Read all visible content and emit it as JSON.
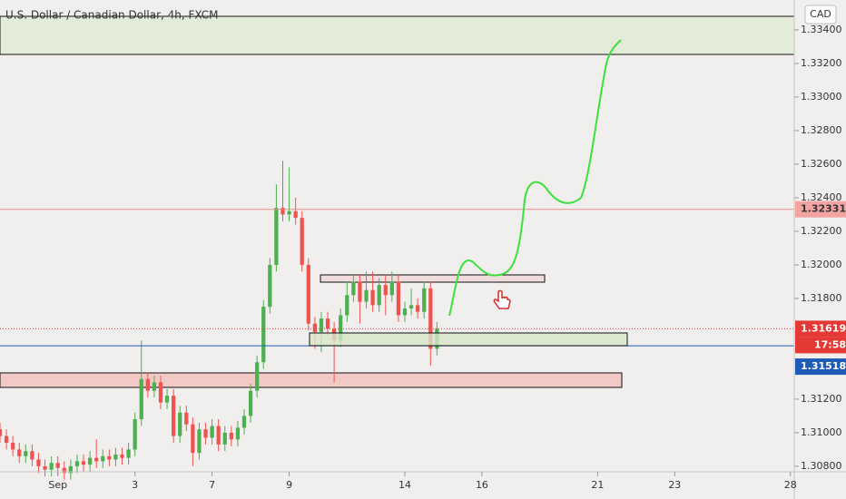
{
  "chart_data": {
    "type": "candlestick",
    "title": "U.S. Dollar / Canadian Dollar, 4h, FXCM",
    "currency": "CAD",
    "countdown": "17:58",
    "xlim": [
      0,
      123.6
    ],
    "xticks": [
      {
        "value": 9,
        "label": "Sep"
      },
      {
        "value": 21,
        "label": "3"
      },
      {
        "value": 33,
        "label": "7"
      },
      {
        "value": 45,
        "label": "9"
      },
      {
        "value": 63,
        "label": "14"
      },
      {
        "value": 75,
        "label": "16"
      },
      {
        "value": 93,
        "label": "21"
      },
      {
        "value": 105,
        "label": "23"
      },
      {
        "value": 123,
        "label": "28"
      }
    ],
    "ylim": [
      1.30605,
      1.33578
    ],
    "yticks": [
      {
        "value": 1.308,
        "label": "1.30800"
      },
      {
        "value": 1.31,
        "label": "1.31000"
      },
      {
        "value": 1.312,
        "label": "1.31200"
      },
      {
        "value": 1.318,
        "label": "1.31800"
      },
      {
        "value": 1.32,
        "label": "1.32000"
      },
      {
        "value": 1.322,
        "label": "1.32200"
      },
      {
        "value": 1.324,
        "label": "1.32400"
      },
      {
        "value": 1.326,
        "label": "1.32600"
      },
      {
        "value": 1.328,
        "label": "1.32800"
      },
      {
        "value": 1.33,
        "label": "1.33000"
      },
      {
        "value": 1.332,
        "label": "1.33200"
      },
      {
        "value": 1.334,
        "label": "1.33400"
      }
    ],
    "up_color": "#4caf50",
    "down_color": "#ef5350",
    "open": [
      1.3102,
      1.3098,
      1.3094,
      1.309,
      1.3086,
      1.3089,
      1.3084,
      1.308,
      1.3078,
      1.3082,
      1.3079,
      1.3076,
      1.308,
      1.3083,
      1.3081,
      1.3085,
      1.3083,
      1.3086,
      1.3084,
      1.3087,
      1.3085,
      1.309,
      1.3108,
      1.3132,
      1.3125,
      1.313,
      1.3118,
      1.3122,
      1.3098,
      1.3112,
      1.3105,
      1.3088,
      1.3102,
      1.3097,
      1.3104,
      1.3093,
      1.31,
      1.3096,
      1.3103,
      1.311,
      1.3125,
      1.3142,
      1.3175,
      1.32,
      1.3234,
      1.323,
      1.3232,
      1.3228,
      1.32,
      1.3165,
      1.316,
      1.3168,
      1.3162,
      1.3155,
      1.317,
      1.3182,
      1.319,
      1.3178,
      1.3185,
      1.3176,
      1.3188,
      1.3182,
      1.319,
      1.317,
      1.3174,
      1.3176,
      1.3172,
      1.3186,
      1.315
    ],
    "high": [
      1.3106,
      1.3102,
      1.3098,
      1.3094,
      1.3093,
      1.3093,
      1.3088,
      1.3084,
      1.3086,
      1.3086,
      1.3083,
      1.3084,
      1.3087,
      1.3087,
      1.3089,
      1.3096,
      1.309,
      1.309,
      1.3091,
      1.3091,
      1.3094,
      1.3112,
      1.3155,
      1.3136,
      1.3134,
      1.3134,
      1.3126,
      1.3126,
      1.3116,
      1.3116,
      1.3109,
      1.3106,
      1.3106,
      1.3108,
      1.3108,
      1.3104,
      1.3104,
      1.3107,
      1.3114,
      1.3129,
      1.3146,
      1.3179,
      1.3204,
      1.3248,
      1.3262,
      1.3258,
      1.324,
      1.3232,
      1.3204,
      1.3169,
      1.3172,
      1.3172,
      1.3166,
      1.3174,
      1.319,
      1.3194,
      1.3194,
      1.3196,
      1.3196,
      1.3192,
      1.3194,
      1.3196,
      1.3194,
      1.3178,
      1.3186,
      1.318,
      1.319,
      1.319,
      1.3166
    ],
    "low": [
      1.3094,
      1.309,
      1.3086,
      1.3082,
      1.3082,
      1.308,
      1.3076,
      1.3074,
      1.3074,
      1.3075,
      1.3072,
      1.3072,
      1.3076,
      1.3077,
      1.3077,
      1.3079,
      1.3079,
      1.308,
      1.308,
      1.3081,
      1.3081,
      1.3086,
      1.3104,
      1.3121,
      1.3121,
      1.3114,
      1.3114,
      1.3094,
      1.3094,
      1.3101,
      1.308,
      1.3084,
      1.3093,
      1.3093,
      1.3089,
      1.3089,
      1.3092,
      1.3092,
      1.3099,
      1.3106,
      1.3121,
      1.3138,
      1.3171,
      1.3196,
      1.3226,
      1.3226,
      1.3224,
      1.3196,
      1.3161,
      1.315,
      1.3148,
      1.3158,
      1.313,
      1.3151,
      1.3166,
      1.3178,
      1.3165,
      1.3174,
      1.3172,
      1.3172,
      1.317,
      1.3178,
      1.3166,
      1.3166,
      1.317,
      1.3168,
      1.3168,
      1.314,
      1.3146
    ],
    "close": [
      1.3098,
      1.3094,
      1.309,
      1.3086,
      1.3089,
      1.3084,
      1.308,
      1.3078,
      1.3082,
      1.3079,
      1.3076,
      1.308,
      1.3083,
      1.3081,
      1.3085,
      1.3083,
      1.3086,
      1.3084,
      1.3087,
      1.3085,
      1.309,
      1.3108,
      1.3132,
      1.3125,
      1.313,
      1.3118,
      1.3122,
      1.3098,
      1.3112,
      1.3105,
      1.3088,
      1.3102,
      1.3097,
      1.3104,
      1.3093,
      1.31,
      1.3096,
      1.3103,
      1.311,
      1.3125,
      1.3142,
      1.3175,
      1.32,
      1.3234,
      1.323,
      1.3232,
      1.3228,
      1.32,
      1.3165,
      1.316,
      1.3168,
      1.3162,
      1.3155,
      1.317,
      1.3182,
      1.319,
      1.3178,
      1.3185,
      1.3176,
      1.3188,
      1.3182,
      1.319,
      1.317,
      1.3174,
      1.3176,
      1.3172,
      1.3186,
      1.315,
      1.3162
    ],
    "levels": [
      {
        "value": 1.32331,
        "color": "#f28b8b",
        "badge": "#f4a3a3",
        "style": "solid"
      },
      {
        "value": 1.31619,
        "color": "#e53935",
        "badge": "#e53935",
        "style": "dotted"
      },
      {
        "value": 1.31518,
        "color": "#1e5bb8",
        "badge": "#1e5bb8",
        "style": "solid"
      }
    ]
  }
}
